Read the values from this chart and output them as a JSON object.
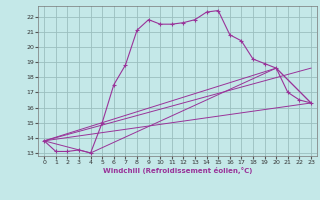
{
  "xlabel": "Windchill (Refroidissement éolien,°C)",
  "xlim": [
    -0.5,
    23.5
  ],
  "ylim": [
    12.8,
    22.7
  ],
  "xticks": [
    0,
    1,
    2,
    3,
    4,
    5,
    6,
    7,
    8,
    9,
    10,
    11,
    12,
    13,
    14,
    15,
    16,
    17,
    18,
    19,
    20,
    21,
    22,
    23
  ],
  "yticks": [
    13,
    14,
    15,
    16,
    17,
    18,
    19,
    20,
    21,
    22
  ],
  "bg_color": "#c4e8e8",
  "line_color": "#993399",
  "grid_color": "#9bbfbf",
  "line1_x": [
    0,
    1,
    2,
    3,
    4,
    5,
    6,
    7,
    8,
    9,
    10,
    11,
    12,
    13,
    14,
    15,
    16,
    17,
    18,
    19,
    20,
    21,
    22,
    23
  ],
  "line1_y": [
    13.8,
    13.1,
    13.1,
    13.2,
    13.0,
    15.0,
    17.5,
    18.8,
    21.1,
    21.8,
    21.5,
    21.5,
    21.6,
    21.8,
    22.3,
    22.4,
    20.8,
    20.4,
    19.2,
    18.9,
    18.6,
    17.0,
    16.5,
    16.3
  ],
  "line2_x": [
    0,
    20,
    23
  ],
  "line2_y": [
    13.8,
    18.6,
    16.3
  ],
  "line3_x": [
    0,
    4,
    20,
    23
  ],
  "line3_y": [
    13.8,
    13.0,
    18.6,
    16.3
  ],
  "line4_x": [
    0,
    23
  ],
  "line4_y": [
    13.8,
    16.3
  ],
  "line5_x": [
    0,
    23
  ],
  "line5_y": [
    13.8,
    18.6
  ]
}
